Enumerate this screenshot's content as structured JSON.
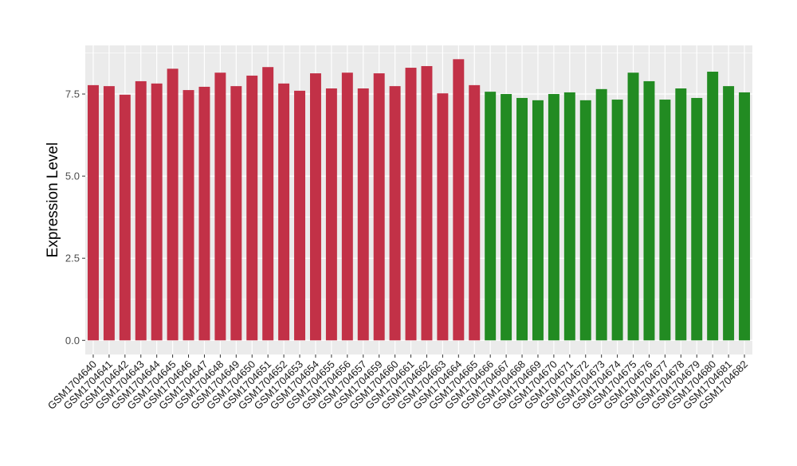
{
  "chart_data": {
    "type": "bar",
    "title": "",
    "xlabel": "",
    "ylabel": "Expression Level",
    "ylim": [
      -0.43,
      8.98
    ],
    "yticks": [
      0.0,
      2.5,
      5.0,
      7.5
    ],
    "ytick_labels": [
      "0.0",
      "2.5",
      "5.0",
      "7.5"
    ],
    "grid": true,
    "legend": "none",
    "categories": [
      "GSM1704640",
      "GSM1704641",
      "GSM1704642",
      "GSM1704643",
      "GSM1704644",
      "GSM1704645",
      "GSM1704646",
      "GSM1704647",
      "GSM1704648",
      "GSM1704649",
      "GSM1704650",
      "GSM1704651",
      "GSM1704652",
      "GSM1704653",
      "GSM1704654",
      "GSM1704655",
      "GSM1704656",
      "GSM1704657",
      "GSM1704659",
      "GSM1704660",
      "GSM1704661",
      "GSM1704662",
      "GSM1704663",
      "GSM1704664",
      "GSM1704665",
      "GSM1704666",
      "GSM1704667",
      "GSM1704668",
      "GSM1704669",
      "GSM1704670",
      "GSM1704671",
      "GSM1704672",
      "GSM1704673",
      "GSM1704674",
      "GSM1704675",
      "GSM1704676",
      "GSM1704677",
      "GSM1704678",
      "GSM1704679",
      "GSM1704680",
      "GSM1704681",
      "GSM1704682"
    ],
    "values": [
      7.77,
      7.74,
      7.48,
      7.89,
      7.82,
      8.27,
      7.62,
      7.72,
      8.15,
      7.74,
      8.06,
      8.32,
      7.82,
      7.6,
      8.13,
      7.67,
      8.15,
      7.67,
      8.13,
      7.74,
      8.3,
      8.35,
      7.52,
      8.56,
      7.77,
      7.57,
      7.5,
      7.38,
      7.31,
      7.5,
      7.55,
      7.31,
      7.65,
      7.33,
      8.15,
      7.89,
      7.33,
      7.67,
      7.38,
      8.18,
      7.74,
      7.55
    ],
    "groups": [
      0,
      0,
      0,
      0,
      0,
      0,
      0,
      0,
      0,
      0,
      0,
      0,
      0,
      0,
      0,
      0,
      0,
      0,
      0,
      0,
      0,
      0,
      0,
      0,
      0,
      1,
      1,
      1,
      1,
      1,
      1,
      1,
      1,
      1,
      1,
      1,
      1,
      1,
      1,
      1,
      1,
      1
    ],
    "colors": {
      "group_0": "#C23147",
      "group_1": "#228B22",
      "panel": "#EBEBEB",
      "grid": "#FFFFFF"
    }
  }
}
